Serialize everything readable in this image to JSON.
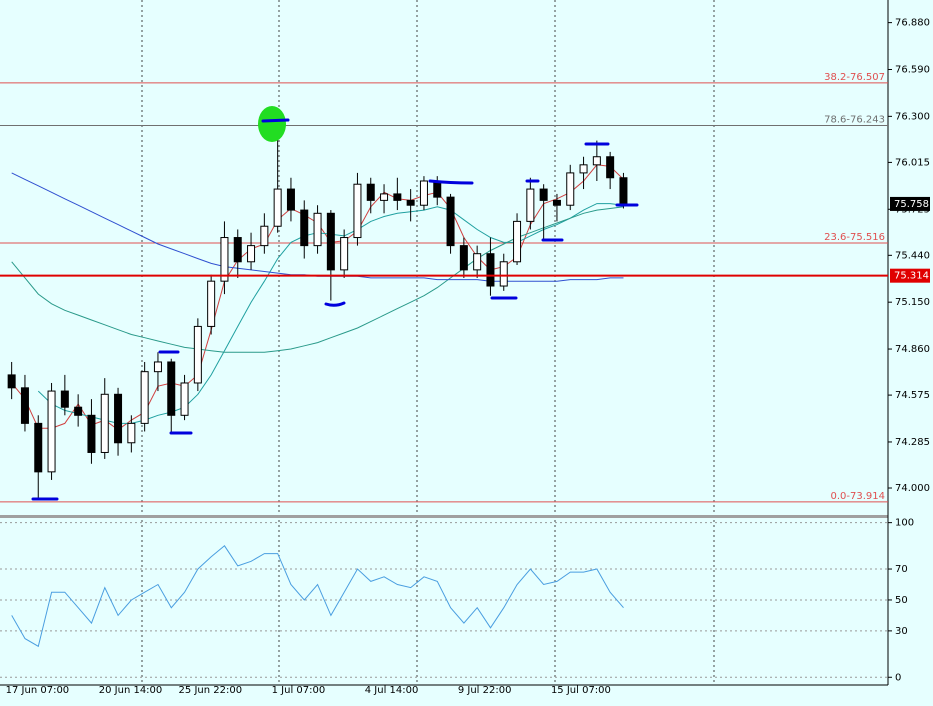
{
  "chart_data": [
    {
      "type": "candlestick",
      "categories": [
        "17 Jun 07:00",
        null,
        null,
        null,
        null,
        null,
        null,
        "20 Jun 14:00",
        null,
        null,
        null,
        null,
        null,
        "25 Jun 22:00",
        null,
        null,
        null,
        null,
        null,
        null,
        "1 Jul 07:00",
        null,
        null,
        null,
        null,
        null,
        null,
        "4 Jul 14:00",
        null,
        null,
        null,
        null,
        null,
        null,
        "9 Jul 22:00",
        null,
        null,
        null,
        null,
        null,
        null,
        "15 Jul 07:00",
        null,
        null,
        null,
        null,
        null
      ],
      "open": [
        74.7,
        74.62,
        74.4,
        74.1,
        74.6,
        74.5,
        74.45,
        74.22,
        74.58,
        74.28,
        74.4,
        74.72,
        74.78,
        74.45,
        74.65,
        75.0,
        75.28,
        75.55,
        75.4,
        75.5,
        75.62,
        75.85,
        75.72,
        75.5,
        75.7,
        75.35,
        75.55,
        75.88,
        75.78,
        75.82,
        75.78,
        75.75,
        75.9,
        75.8,
        75.5,
        75.35,
        75.45,
        75.25,
        75.4,
        75.65,
        75.85,
        75.78,
        75.75,
        75.95,
        76.0,
        76.05,
        75.92
      ],
      "high": [
        74.78,
        74.7,
        74.45,
        74.65,
        74.7,
        74.58,
        74.55,
        74.68,
        74.62,
        74.45,
        74.78,
        74.84,
        74.8,
        74.7,
        75.05,
        75.32,
        75.65,
        75.6,
        75.58,
        75.7,
        76.25,
        75.92,
        75.78,
        75.75,
        75.72,
        75.6,
        75.95,
        75.92,
        75.88,
        75.92,
        75.85,
        75.93,
        75.93,
        75.82,
        75.55,
        75.5,
        75.55,
        75.45,
        75.7,
        75.92,
        75.88,
        75.82,
        76.0,
        76.05,
        76.15,
        76.08,
        75.95
      ],
      "low": [
        74.55,
        74.35,
        73.93,
        74.05,
        74.45,
        74.38,
        74.15,
        74.18,
        74.2,
        74.22,
        74.35,
        74.6,
        74.34,
        74.42,
        74.6,
        74.95,
        75.2,
        75.3,
        75.35,
        75.45,
        75.58,
        75.65,
        75.42,
        75.45,
        75.16,
        75.3,
        75.5,
        75.7,
        75.7,
        75.72,
        75.65,
        75.72,
        75.75,
        75.45,
        75.3,
        75.3,
        75.19,
        75.22,
        75.38,
        75.6,
        75.53,
        75.65,
        75.72,
        75.85,
        75.9,
        75.85,
        75.73
      ],
      "close": [
        74.62,
        74.4,
        74.1,
        74.6,
        74.5,
        74.45,
        74.22,
        74.58,
        74.28,
        74.4,
        74.72,
        74.78,
        74.45,
        74.65,
        75.0,
        75.28,
        75.55,
        75.4,
        75.5,
        75.62,
        75.85,
        75.72,
        75.5,
        75.7,
        75.35,
        75.55,
        75.88,
        75.78,
        75.82,
        75.78,
        75.75,
        75.9,
        75.8,
        75.5,
        75.35,
        75.45,
        75.25,
        75.4,
        75.65,
        75.85,
        75.78,
        75.75,
        75.95,
        76.0,
        76.05,
        75.92,
        75.76
      ],
      "series": [
        {
          "color": "#d04040",
          "values": [
            74.65,
            74.55,
            74.37,
            74.37,
            74.4,
            74.52,
            74.39,
            74.42,
            74.36,
            74.42,
            74.47,
            74.63,
            74.65,
            74.63,
            74.7,
            74.98,
            75.28,
            75.41,
            75.48,
            75.51,
            75.66,
            75.73,
            75.69,
            75.64,
            75.52,
            75.53,
            75.59,
            75.74,
            75.83,
            75.79,
            75.78,
            75.81,
            75.83,
            75.73,
            75.55,
            75.43,
            75.35,
            75.37,
            75.43,
            75.63,
            75.76,
            75.79,
            75.83,
            75.9,
            76.0,
            75.99,
            75.91
          ]
        },
        {
          "color": "#20a0a0",
          "values": [
            null,
            null,
            74.6,
            74.52,
            74.48,
            74.46,
            74.44,
            74.42,
            74.4,
            74.4,
            74.42,
            74.45,
            74.47,
            74.5,
            74.58,
            74.7,
            74.85,
            75.0,
            75.15,
            75.28,
            75.42,
            75.52,
            75.56,
            75.58,
            75.57,
            75.56,
            75.6,
            75.65,
            75.68,
            75.7,
            75.71,
            75.72,
            75.74,
            75.72,
            75.66,
            75.6,
            75.55,
            75.52,
            75.52,
            75.56,
            75.6,
            75.63,
            75.67,
            75.72,
            75.76,
            75.76,
            75.75
          ]
        },
        {
          "color": "#2a9a8a",
          "values": [
            75.4,
            75.3,
            75.2,
            75.14,
            75.1,
            75.07,
            75.04,
            75.01,
            74.98,
            74.95,
            74.93,
            74.91,
            74.89,
            74.87,
            74.86,
            74.85,
            74.84,
            74.84,
            74.84,
            74.84,
            74.85,
            74.86,
            74.88,
            74.9,
            74.93,
            74.96,
            74.99,
            75.03,
            75.07,
            75.11,
            75.15,
            75.19,
            75.24,
            75.3,
            75.36,
            75.42,
            75.47,
            75.51,
            75.55,
            75.58,
            75.61,
            75.64,
            75.67,
            75.7,
            75.72,
            75.73,
            75.74
          ]
        },
        {
          "color": "#3050d0",
          "values": [
            75.95,
            75.91,
            75.87,
            75.83,
            75.79,
            75.75,
            75.71,
            75.67,
            75.63,
            75.59,
            75.55,
            75.51,
            75.48,
            75.45,
            75.42,
            75.39,
            75.37,
            75.36,
            75.35,
            75.34,
            75.33,
            75.32,
            75.32,
            75.31,
            75.31,
            75.31,
            75.31,
            75.3,
            75.3,
            75.3,
            75.3,
            75.3,
            75.29,
            75.29,
            75.29,
            75.29,
            75.28,
            75.28,
            75.28,
            75.28,
            75.28,
            75.28,
            75.29,
            75.29,
            75.29,
            75.3,
            75.3
          ]
        }
      ],
      "ylim": [
        73.833,
        77.02
      ],
      "yticks": [
        {
          "value": 74.0,
          "label": "74.000"
        },
        {
          "value": 74.285,
          "label": "74.285"
        },
        {
          "value": 74.575,
          "label": "74.575"
        },
        {
          "value": 74.86,
          "label": "74.860"
        },
        {
          "value": 75.15,
          "label": "75.150"
        },
        {
          "value": 75.44,
          "label": "75.440"
        },
        {
          "value": 75.725,
          "label": "75.725"
        },
        {
          "value": 76.015,
          "label": "76.015"
        },
        {
          "value": 76.3,
          "label": "76.300"
        },
        {
          "value": 76.59,
          "label": "76.590"
        },
        {
          "value": 76.88,
          "label": "76.880"
        }
      ],
      "levels": [
        {
          "label": "38.2-76.507",
          "value": 76.507,
          "color": "#e05050"
        },
        {
          "label": "78.6-76.243",
          "value": 76.243,
          "color": "#707070"
        },
        {
          "label": "23.6-75.516",
          "value": 75.516,
          "color": "#e05050"
        },
        {
          "label": "0.0-73.914",
          "value": 73.914,
          "color": "#e05050"
        }
      ],
      "price_markers": [
        {
          "value": 75.758,
          "color": "#000000"
        },
        {
          "value": 75.314,
          "color": "#e00000"
        }
      ]
    },
    {
      "type": "line",
      "values": [
        40,
        25,
        20,
        55,
        55,
        45,
        35,
        58,
        40,
        50,
        55,
        60,
        45,
        55,
        70,
        78,
        85,
        72,
        75,
        80,
        80,
        60,
        50,
        60,
        40,
        55,
        70,
        62,
        65,
        60,
        58,
        65,
        62,
        45,
        35,
        45,
        32,
        45,
        60,
        70,
        60,
        62,
        68,
        68,
        70,
        55,
        45
      ],
      "color": "#4a9ee0",
      "ylim": [
        -5,
        103
      ],
      "yticks": [
        0,
        30,
        50,
        70,
        100
      ],
      "grid": true
    }
  ]
}
